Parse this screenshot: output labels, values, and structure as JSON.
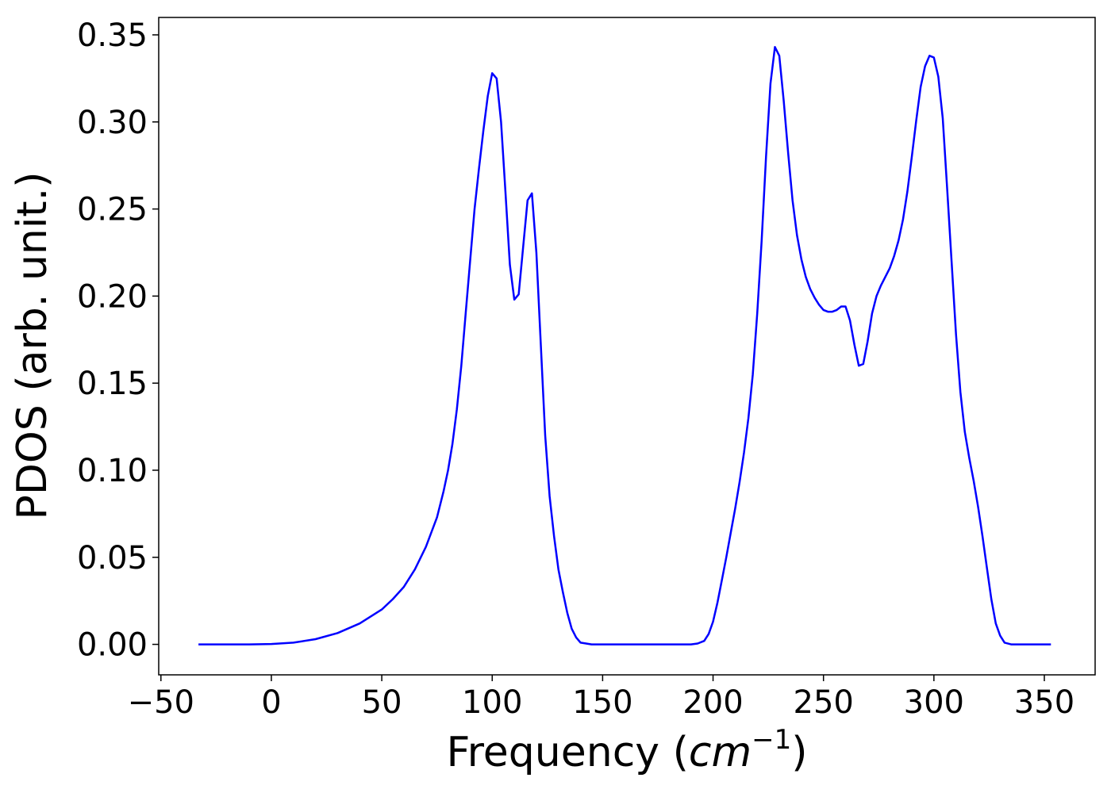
{
  "chart_data": {
    "type": "line",
    "title": "",
    "xlabel_prefix": "Frequency (",
    "xlabel_unit": "cm",
    "xlabel_exponent": "−1",
    "xlabel_suffix": ")",
    "ylabel": "PDOS (arb. unit.)",
    "xlim": [
      -51,
      373
    ],
    "ylim": [
      -0.0175,
      0.36
    ],
    "x_ticks": [
      -50,
      0,
      50,
      100,
      150,
      200,
      250,
      300,
      350
    ],
    "x_tick_labels": [
      "−50",
      "0",
      "50",
      "100",
      "150",
      "200",
      "250",
      "300",
      "350"
    ],
    "y_ticks": [
      0,
      0.05,
      0.1,
      0.15,
      0.2,
      0.25,
      0.3,
      0.35
    ],
    "y_tick_labels": [
      "0.00",
      "0.05",
      "0.10",
      "0.15",
      "0.20",
      "0.25",
      "0.30",
      "0.35"
    ],
    "grid": false,
    "series": [
      {
        "color": "#0000ff",
        "points": [
          [
            -33,
            0
          ],
          [
            -10,
            0
          ],
          [
            0,
            0.0002
          ],
          [
            10,
            0.001
          ],
          [
            20,
            0.003
          ],
          [
            30,
            0.0065
          ],
          [
            40,
            0.012
          ],
          [
            50,
            0.02
          ],
          [
            55,
            0.026
          ],
          [
            60,
            0.033
          ],
          [
            65,
            0.043
          ],
          [
            70,
            0.056
          ],
          [
            75,
            0.073
          ],
          [
            78,
            0.088
          ],
          [
            80,
            0.1
          ],
          [
            82,
            0.115
          ],
          [
            84,
            0.135
          ],
          [
            86,
            0.16
          ],
          [
            88,
            0.19
          ],
          [
            90,
            0.22
          ],
          [
            92,
            0.25
          ],
          [
            94,
            0.273
          ],
          [
            96,
            0.295
          ],
          [
            98,
            0.315
          ],
          [
            100,
            0.328
          ],
          [
            102,
            0.325
          ],
          [
            104,
            0.3
          ],
          [
            106,
            0.26
          ],
          [
            108,
            0.218
          ],
          [
            110,
            0.198
          ],
          [
            112,
            0.201
          ],
          [
            114,
            0.228
          ],
          [
            116,
            0.255
          ],
          [
            118,
            0.259
          ],
          [
            120,
            0.225
          ],
          [
            122,
            0.172
          ],
          [
            124,
            0.12
          ],
          [
            126,
            0.085
          ],
          [
            128,
            0.062
          ],
          [
            130,
            0.043
          ],
          [
            132,
            0.03
          ],
          [
            134,
            0.018
          ],
          [
            136,
            0.009
          ],
          [
            138,
            0.004
          ],
          [
            140,
            0.001
          ],
          [
            145,
            0
          ],
          [
            150,
            0
          ],
          [
            190,
            0
          ],
          [
            193,
            0.0005
          ],
          [
            196,
            0.002
          ],
          [
            198,
            0.006
          ],
          [
            200,
            0.013
          ],
          [
            202,
            0.024
          ],
          [
            204,
            0.037
          ],
          [
            206,
            0.05
          ],
          [
            208,
            0.064
          ],
          [
            210,
            0.078
          ],
          [
            212,
            0.093
          ],
          [
            214,
            0.11
          ],
          [
            216,
            0.13
          ],
          [
            218,
            0.155
          ],
          [
            220,
            0.19
          ],
          [
            222,
            0.232
          ],
          [
            224,
            0.28
          ],
          [
            226,
            0.322
          ],
          [
            228,
            0.343
          ],
          [
            230,
            0.338
          ],
          [
            232,
            0.312
          ],
          [
            234,
            0.282
          ],
          [
            236,
            0.255
          ],
          [
            238,
            0.235
          ],
          [
            240,
            0.221
          ],
          [
            242,
            0.211
          ],
          [
            244,
            0.204
          ],
          [
            246,
            0.199
          ],
          [
            248,
            0.195
          ],
          [
            250,
            0.192
          ],
          [
            252,
            0.191
          ],
          [
            254,
            0.191
          ],
          [
            256,
            0.192
          ],
          [
            258,
            0.194
          ],
          [
            260,
            0.194
          ],
          [
            262,
            0.186
          ],
          [
            264,
            0.172
          ],
          [
            266,
            0.16
          ],
          [
            268,
            0.161
          ],
          [
            270,
            0.174
          ],
          [
            272,
            0.19
          ],
          [
            274,
            0.2
          ],
          [
            276,
            0.206
          ],
          [
            278,
            0.211
          ],
          [
            280,
            0.216
          ],
          [
            282,
            0.223
          ],
          [
            284,
            0.232
          ],
          [
            286,
            0.244
          ],
          [
            288,
            0.26
          ],
          [
            290,
            0.28
          ],
          [
            292,
            0.301
          ],
          [
            294,
            0.32
          ],
          [
            296,
            0.332
          ],
          [
            298,
            0.338
          ],
          [
            300,
            0.337
          ],
          [
            302,
            0.326
          ],
          [
            304,
            0.302
          ],
          [
            306,
            0.262
          ],
          [
            308,
            0.22
          ],
          [
            310,
            0.178
          ],
          [
            312,
            0.145
          ],
          [
            314,
            0.122
          ],
          [
            316,
            0.107
          ],
          [
            318,
            0.094
          ],
          [
            320,
            0.079
          ],
          [
            322,
            0.062
          ],
          [
            324,
            0.044
          ],
          [
            326,
            0.026
          ],
          [
            328,
            0.012
          ],
          [
            330,
            0.005
          ],
          [
            332,
            0.001
          ],
          [
            335,
            0
          ],
          [
            353,
            0
          ]
        ]
      }
    ]
  }
}
